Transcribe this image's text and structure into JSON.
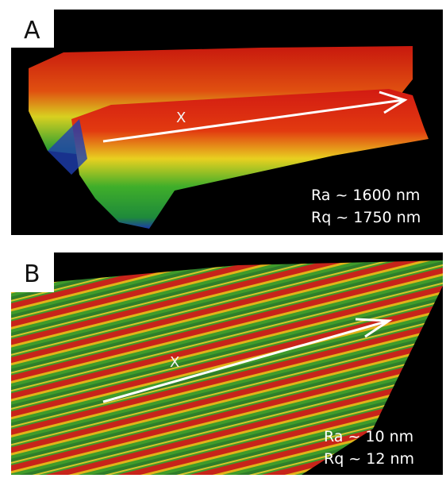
{
  "panels": [
    {
      "label": "A",
      "marker": "X",
      "roughness": [
        "Ra ~ 1600 nm",
        "Rq ~ 1750 nm"
      ]
    },
    {
      "label": "B",
      "marker": "X",
      "roughness": [
        "Ra ~ 10 nm",
        "Rq ~ 12 nm"
      ]
    }
  ]
}
